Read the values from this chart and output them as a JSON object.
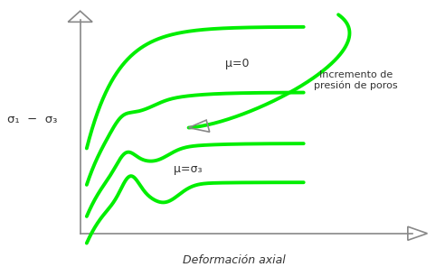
{
  "background_color": "#ffffff",
  "curve_color": "#00ee00",
  "curve_linewidth": 2.8,
  "axis_color": "#888888",
  "text_color": "#333333",
  "ylabel": "σ₁  −  σ₃",
  "xlabel": "Deformación axial",
  "label_mu0": "μ=0",
  "label_mu_sigma3": "μ=σ₃",
  "label_increment": "Incremento de\npresión de poros",
  "figsize": [
    4.92,
    2.96
  ],
  "dpi": 100
}
